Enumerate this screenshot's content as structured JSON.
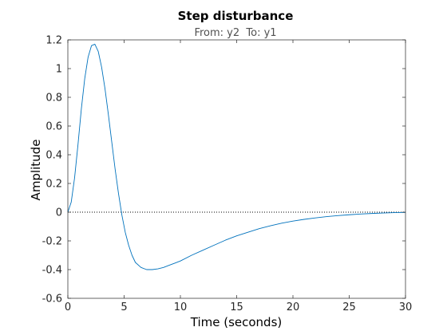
{
  "chart_data": {
    "type": "line",
    "title": "Step disturbance",
    "subtitle": "From: y2  To: y1",
    "xlabel": "Time (seconds)",
    "ylabel": "Amplitude",
    "xlim": [
      0,
      30
    ],
    "ylim": [
      -0.6,
      1.2
    ],
    "x_ticks": [
      "0",
      "5",
      "10",
      "15",
      "20",
      "25",
      "30"
    ],
    "x_tick_values": [
      0,
      5,
      10,
      15,
      20,
      25,
      30
    ],
    "y_ticks": [
      "-0.6",
      "-0.4",
      "-0.2",
      "0",
      "0.2",
      "0.4",
      "0.6",
      "0.8",
      "1",
      "1.2"
    ],
    "y_tick_values": [
      -0.6,
      -0.4,
      -0.2,
      0,
      0.2,
      0.4,
      0.6,
      0.8,
      1,
      1.2
    ],
    "grid": false,
    "reference_line": {
      "y": 0,
      "style": "dotted",
      "color": "#000000"
    },
    "series": [
      {
        "color": "#0072BD",
        "x": [
          0,
          0.3,
          0.6,
          0.9,
          1.2,
          1.5,
          1.8,
          2.1,
          2.4,
          2.7,
          3.0,
          3.3,
          3.6,
          3.9,
          4.2,
          4.5,
          4.8,
          5.1,
          5.4,
          5.7,
          6.0,
          6.5,
          7.0,
          7.5,
          8.0,
          8.5,
          9.0,
          9.5,
          10,
          11,
          12,
          13,
          14,
          15,
          16,
          17,
          18,
          19,
          20,
          21,
          22,
          23,
          24,
          25,
          26,
          27,
          28,
          29,
          30
        ],
        "y": [
          0,
          0.07,
          0.24,
          0.47,
          0.72,
          0.93,
          1.08,
          1.16,
          1.17,
          1.12,
          1.01,
          0.86,
          0.68,
          0.49,
          0.3,
          0.13,
          -0.02,
          -0.14,
          -0.23,
          -0.3,
          -0.35,
          -0.385,
          -0.4,
          -0.4,
          -0.395,
          -0.385,
          -0.37,
          -0.355,
          -0.34,
          -0.3,
          -0.265,
          -0.23,
          -0.195,
          -0.165,
          -0.14,
          -0.115,
          -0.095,
          -0.077,
          -0.062,
          -0.05,
          -0.04,
          -0.031,
          -0.024,
          -0.018,
          -0.013,
          -0.009,
          -0.006,
          -0.003,
          -0.002
        ]
      }
    ]
  }
}
